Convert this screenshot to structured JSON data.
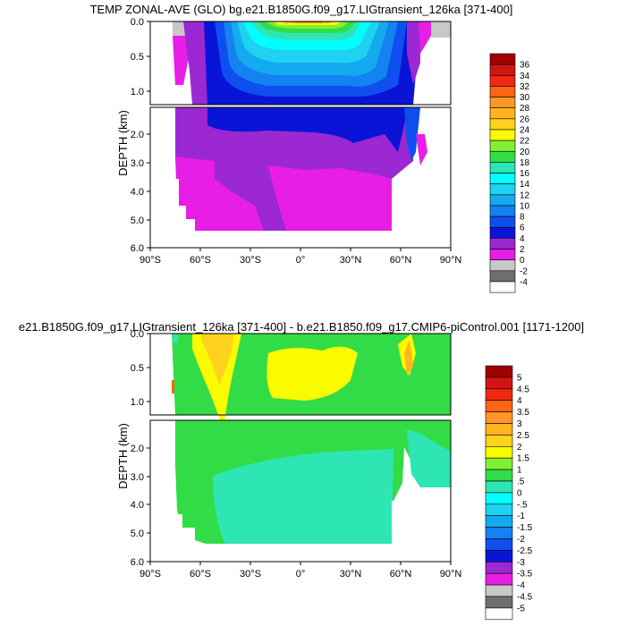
{
  "chart_data": [
    {
      "type": "heatmap",
      "title": "TEMP ZONAL-AVE (GLO) bg.e21.B1850G.f09_g17.LIGtransient_126ka [371-400]",
      "ylabel": "DEPTH (km)",
      "x_ticks": [
        "90°S",
        "60°S",
        "30°S",
        "0°",
        "30°N",
        "60°N",
        "90°N"
      ],
      "upper_y_ticks": [
        "0.0",
        "0.5",
        "1.0"
      ],
      "lower_y_ticks": [
        "2.0",
        "3.0",
        "4.0",
        "5.0",
        "6.0"
      ],
      "xlim": [
        -90,
        90
      ],
      "ylim_upper_km": [
        0,
        1.2
      ],
      "ylim_lower_km": [
        1.2,
        6
      ],
      "colorbar_levels": [
        "-4",
        "-2",
        "0",
        "2",
        "4",
        "6",
        "8",
        "10",
        "12",
        "14",
        "16",
        "18",
        "20",
        "22",
        "24",
        "26",
        "28",
        "30",
        "32",
        "34",
        "36"
      ],
      "colorbar_colors": [
        "#ffffff",
        "#6e6e6e",
        "#c8c8c8",
        "#e61ee6",
        "#9b28d2",
        "#0a14d7",
        "#0f4ff0",
        "#1482f0",
        "#14aaf0",
        "#1ed2f0",
        "#00ffff",
        "#2de6b4",
        "#32dc46",
        "#82f032",
        "#fafa00",
        "#ffd21e",
        "#ffb41e",
        "#ff9628",
        "#ff6414",
        "#f02814",
        "#d21414",
        "#a00000"
      ]
    },
    {
      "type": "heatmap",
      "title": "e21.B1850G.f09_g17.LIGtransient_126ka [371-400] - b.e21.B1850.f09_g17.CMIP6-piControl.001 [1171-1200]",
      "ylabel": "DEPTH (km)",
      "x_ticks": [
        "90°S",
        "60°S",
        "30°S",
        "0°",
        "30°N",
        "60°N",
        "90°N"
      ],
      "upper_y_ticks": [
        "0.0",
        "0.5",
        "1.0"
      ],
      "lower_y_ticks": [
        "2.0",
        "3.0",
        "4.0",
        "5.0",
        "6.0"
      ],
      "xlim": [
        -90,
        90
      ],
      "ylim_upper_km": [
        0,
        1.2
      ],
      "ylim_lower_km": [
        1.2,
        6
      ],
      "colorbar_levels": [
        "-5",
        "-4.5",
        "-4",
        "-3.5",
        "-3",
        "-2.5",
        "-2",
        "-1.5",
        "-1",
        "-.5",
        "0",
        ".5",
        "1",
        "1.5",
        "2",
        "2.5",
        "3",
        "3.5",
        "4",
        "4.5",
        "5"
      ],
      "colorbar_colors": [
        "#ffffff",
        "#6e6e6e",
        "#c8c8c8",
        "#e61ee6",
        "#9b28d2",
        "#0a14d7",
        "#0f4ff0",
        "#1482f0",
        "#14aaf0",
        "#1ed2f0",
        "#00ffff",
        "#2de6b4",
        "#32dc46",
        "#82f032",
        "#fafa00",
        "#ffd21e",
        "#ffb41e",
        "#ff9628",
        "#ff6414",
        "#f02814",
        "#d21414",
        "#a00000"
      ]
    }
  ]
}
